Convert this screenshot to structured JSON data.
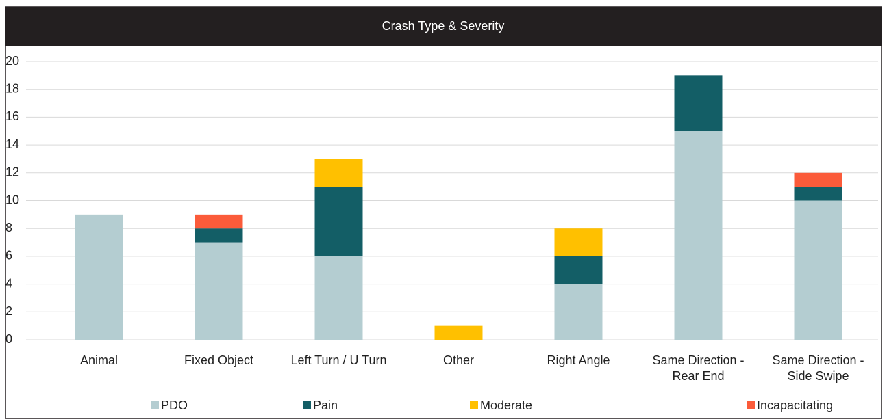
{
  "chart_data": {
    "type": "stacked_bar",
    "title": "Crash Type & Severity",
    "categories": [
      "Animal",
      "Fixed Object",
      "Left Turn / U Turn",
      "Other",
      "Right Angle",
      "Same Direction - Rear End",
      "Same Direction - Side Swipe"
    ],
    "series": [
      {
        "name": "PDO",
        "color": "#b4cdd1",
        "values": [
          9,
          7,
          6,
          0,
          4,
          15,
          10
        ]
      },
      {
        "name": "Pain",
        "color": "#135e66",
        "values": [
          0,
          1,
          5,
          0,
          2,
          4,
          1
        ]
      },
      {
        "name": "Moderate",
        "color": "#ffc000",
        "values": [
          0,
          0,
          2,
          1,
          2,
          0,
          0
        ]
      },
      {
        "name": "Incapacitating",
        "color": "#fb5b3a",
        "values": [
          0,
          1,
          0,
          0,
          0,
          0,
          1
        ]
      }
    ],
    "ylim": [
      0,
      20
    ],
    "yticks": [
      0,
      2,
      4,
      6,
      8,
      10,
      12,
      14,
      16,
      18,
      20
    ],
    "grid": true,
    "legend": "bottom"
  }
}
